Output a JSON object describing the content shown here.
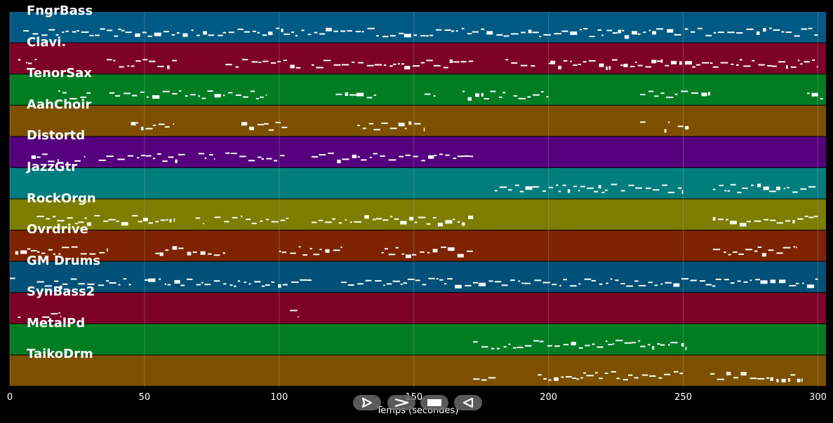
{
  "colors": {
    "background": "#000000",
    "note": "#ffffff",
    "grid": "#b0b0b0"
  },
  "tracks": [
    {
      "name": "FngrBass",
      "color": "#005a84"
    },
    {
      "name": "Clavi.",
      "color": "#7d0028"
    },
    {
      "name": "TenorSax",
      "color": "#007d23"
    },
    {
      "name": "AahChoir",
      "color": "#7d5000"
    },
    {
      "name": "Distortd",
      "color": "#55007d"
    },
    {
      "name": "JazzGtr",
      "color": "#007d7d"
    },
    {
      "name": "RockOrgn",
      "color": "#7d7d00"
    },
    {
      "name": "Ovrdrive",
      "color": "#7d2300"
    },
    {
      "name": "GM Drums",
      "color": "#005078"
    },
    {
      "name": "SynBass2",
      "color": "#7d0028"
    },
    {
      "name": "MetalPd",
      "color": "#007d23"
    },
    {
      "name": "TaikoDrm",
      "color": "#7d5000"
    }
  ],
  "x_axis": {
    "label": "Temps (secondes)",
    "min": 0,
    "max": 303,
    "ticks": [
      0,
      50,
      100,
      150,
      200,
      250,
      300
    ]
  },
  "note_activity": [
    [
      [
        5,
        300
      ]
    ],
    [
      [
        3,
        4
      ],
      [
        6,
        10
      ],
      [
        36,
        62
      ],
      [
        80,
        108
      ],
      [
        112,
        172
      ],
      [
        184,
        195
      ],
      [
        200,
        300
      ]
    ],
    [
      [
        18,
        30
      ],
      [
        37,
        95
      ],
      [
        121,
        136
      ],
      [
        154,
        158
      ],
      [
        168,
        184
      ],
      [
        187,
        200
      ],
      [
        234,
        260
      ],
      [
        296,
        302
      ]
    ],
    [
      [
        45,
        61
      ],
      [
        86,
        103
      ],
      [
        129,
        154
      ],
      [
        234,
        236
      ],
      [
        243,
        245
      ],
      [
        248,
        252
      ]
    ],
    [
      [
        8,
        18
      ],
      [
        24,
        28
      ],
      [
        33,
        65
      ],
      [
        70,
        73
      ],
      [
        74,
        76
      ],
      [
        80,
        102
      ],
      [
        112,
        172
      ]
    ],
    [
      [
        180,
        250
      ],
      [
        261,
        300
      ]
    ],
    [
      [
        10,
        61
      ],
      [
        69,
        72
      ],
      [
        76,
        104
      ],
      [
        112,
        172
      ],
      [
        261,
        300
      ]
    ],
    [
      [
        2,
        36
      ],
      [
        54,
        80
      ],
      [
        100,
        124
      ],
      [
        138,
        154
      ],
      [
        155,
        172
      ],
      [
        261,
        292
      ]
    ],
    [
      [
        0,
        2
      ],
      [
        10,
        45
      ],
      [
        50,
        112
      ],
      [
        123,
        300
      ]
    ],
    [
      [
        3,
        4
      ],
      [
        12,
        19
      ],
      [
        104,
        107
      ]
    ],
    [
      [
        172,
        251
      ]
    ],
    [
      [
        172,
        181
      ],
      [
        196,
        250
      ],
      [
        260,
        294
      ]
    ]
  ],
  "controls": [
    {
      "name": "play-button",
      "icon": "play-icon"
    },
    {
      "name": "fast-forward-button",
      "icon": "fast-forward-icon"
    },
    {
      "name": "stop-button",
      "icon": "stop-icon"
    },
    {
      "name": "rewind-button",
      "icon": "rewind-icon"
    }
  ]
}
